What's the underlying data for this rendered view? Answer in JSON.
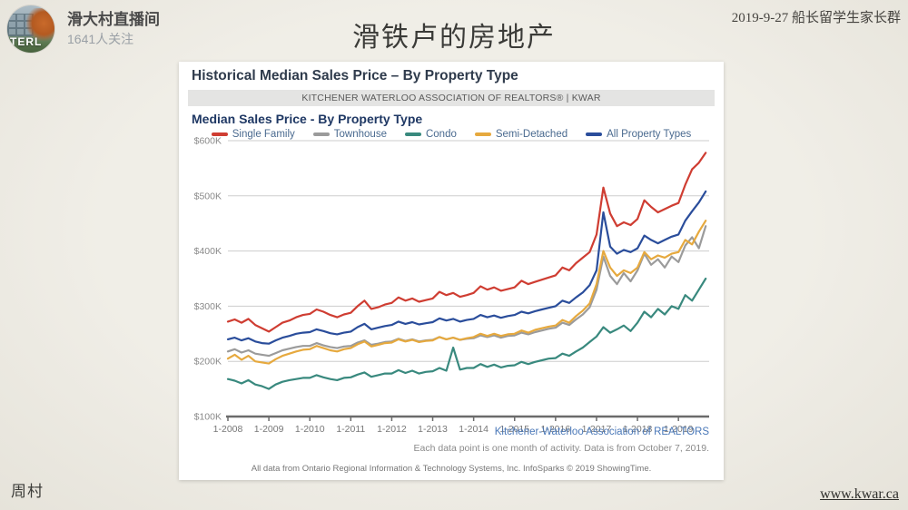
{
  "slide": {
    "background": "#efede7",
    "top_left": {
      "name": "滑大村直播间",
      "followers": "1641人关注",
      "avatar_caption": "TERL"
    },
    "title": "滑铁卢的房地产",
    "top_right": "2019-9-27 船长留学生家长群",
    "bottom_left": "周村",
    "bottom_right_link": "www.kwar.ca"
  },
  "report": {
    "header": "Historical Median Sales Price – By Property Type",
    "banner": "KITCHENER WATERLOO ASSOCIATION OF REALTORS® | KWAR",
    "subtitle": "Median Sales Price - By Property Type",
    "source_link": "Kitchener-Waterloo Association of REALTORS",
    "note1": "Each data point is one month of activity. Data is from October 7, 2019.",
    "note2": "All data from Ontario Regional Information & Technology Systems, Inc. InfoSparks © 2019 ShowingTime."
  },
  "chart_data": {
    "type": "line",
    "title": "Median Sales Price - By Property Type",
    "xlabel": "",
    "ylabel": "Median Sales Price",
    "y_unit": "$K",
    "ylim": [
      100,
      600
    ],
    "grid": "horizontal",
    "legend_position": "top",
    "x_start": "1-2008",
    "x_end": "9-2019",
    "points_interval_months": 2,
    "x_tick_labels": [
      "1-2008",
      "1-2009",
      "1-2010",
      "1-2011",
      "1-2012",
      "1-2013",
      "1-2014",
      "1-2015",
      "1-2016",
      "1-2017",
      "1-2018",
      "1-2019"
    ],
    "y_tick_labels": [
      "$600K",
      "$500K",
      "$400K",
      "$300K",
      "$200K",
      "$100K"
    ],
    "series": [
      {
        "name": "Single Family",
        "color": "#cf3d32",
        "values": [
          272,
          276,
          270,
          277,
          266,
          260,
          254,
          262,
          270,
          274,
          280,
          284,
          286,
          294,
          290,
          284,
          280,
          285,
          288,
          300,
          310,
          295,
          298,
          303,
          306,
          316,
          310,
          314,
          308,
          311,
          314,
          326,
          320,
          324,
          317,
          320,
          324,
          336,
          330,
          334,
          328,
          331,
          334,
          346,
          340,
          344,
          348,
          352,
          356,
          370,
          365,
          378,
          388,
          398,
          430,
          515,
          468,
          445,
          452,
          447,
          458,
          492,
          480,
          470,
          476,
          482,
          487,
          520,
          548,
          560,
          578
        ]
      },
      {
        "name": "Townhouse",
        "color": "#9b9b9b",
        "values": [
          218,
          222,
          216,
          220,
          214,
          212,
          210,
          215,
          220,
          223,
          226,
          228,
          228,
          233,
          229,
          226,
          224,
          227,
          228,
          234,
          238,
          230,
          232,
          235,
          236,
          241,
          237,
          240,
          236,
          238,
          239,
          244,
          240,
          243,
          239,
          241,
          242,
          247,
          244,
          247,
          243,
          246,
          247,
          252,
          249,
          253,
          256,
          259,
          261,
          270,
          266,
          276,
          285,
          298,
          330,
          390,
          355,
          340,
          360,
          345,
          365,
          395,
          375,
          385,
          370,
          390,
          380,
          410,
          425,
          405,
          445
        ]
      },
      {
        "name": "Condo",
        "color": "#39897e",
        "values": [
          168,
          165,
          160,
          166,
          158,
          155,
          150,
          158,
          163,
          166,
          168,
          170,
          170,
          175,
          171,
          168,
          166,
          170,
          171,
          176,
          180,
          172,
          175,
          178,
          178,
          184,
          179,
          183,
          178,
          181,
          182,
          188,
          183,
          225,
          185,
          188,
          188,
          195,
          190,
          194,
          189,
          192,
          193,
          199,
          195,
          199,
          202,
          205,
          206,
          214,
          210,
          218,
          225,
          235,
          245,
          262,
          252,
          258,
          265,
          255,
          270,
          290,
          280,
          295,
          285,
          300,
          295,
          320,
          310,
          330,
          350
        ]
      },
      {
        "name": "Semi-Detached",
        "color": "#e6a93e",
        "values": [
          205,
          212,
          203,
          210,
          200,
          198,
          196,
          204,
          210,
          214,
          218,
          221,
          222,
          228,
          224,
          220,
          218,
          222,
          224,
          231,
          236,
          227,
          230,
          233,
          234,
          240,
          236,
          239,
          235,
          237,
          238,
          244,
          240,
          243,
          239,
          242,
          244,
          250,
          246,
          250,
          246,
          249,
          250,
          256,
          252,
          257,
          260,
          263,
          265,
          275,
          270,
          282,
          292,
          305,
          340,
          400,
          370,
          355,
          365,
          360,
          370,
          398,
          385,
          392,
          388,
          395,
          398,
          420,
          412,
          435,
          455
        ]
      },
      {
        "name": "All Property Types",
        "color": "#2a4d9b",
        "values": [
          240,
          243,
          238,
          242,
          236,
          233,
          232,
          238,
          243,
          246,
          250,
          252,
          253,
          258,
          255,
          251,
          249,
          252,
          254,
          262,
          268,
          258,
          261,
          264,
          266,
          272,
          268,
          271,
          267,
          269,
          271,
          278,
          274,
          277,
          272,
          275,
          277,
          284,
          280,
          283,
          279,
          282,
          284,
          290,
          287,
          291,
          294,
          297,
          300,
          310,
          306,
          316,
          325,
          338,
          365,
          470,
          408,
          395,
          402,
          398,
          405,
          428,
          420,
          414,
          420,
          426,
          430,
          455,
          472,
          488,
          508
        ]
      }
    ]
  }
}
